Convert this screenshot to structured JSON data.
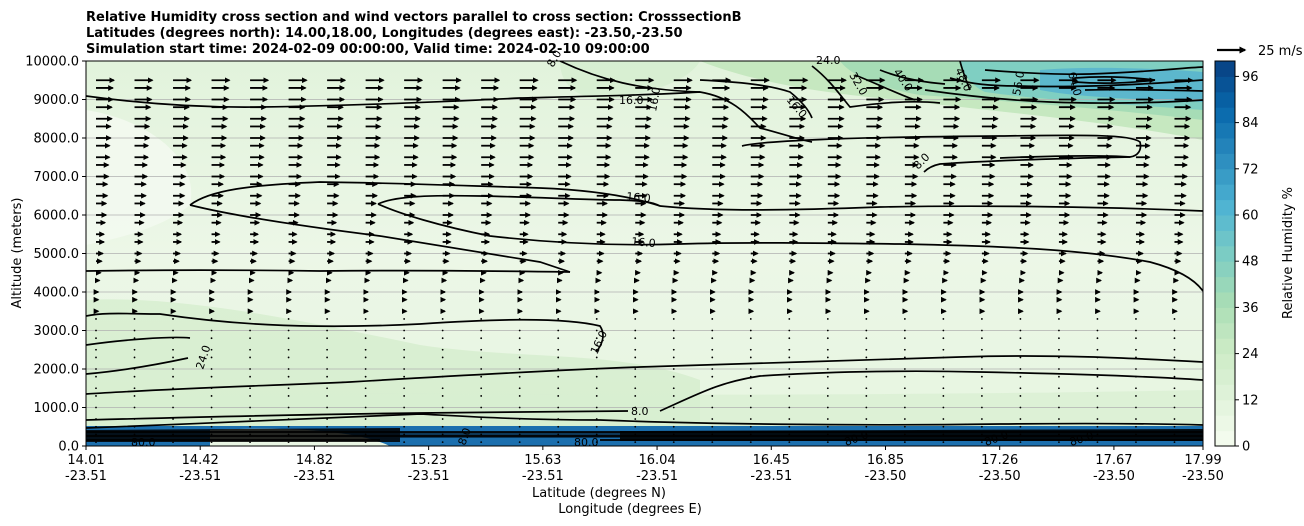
{
  "chart_data": {
    "type": "contour",
    "title": [
      "Relative Humidity cross section and wind vectors parallel to cross section: CrosssectionB",
      "Latitudes (degrees north): 14.00,18.00, Longitudes (degrees east): -23.50,-23.50",
      "Simulation start time: 2024-02-09 00:00:00, Valid time: 2024-02-10 09:00:00"
    ],
    "xlabel": "Latitude (degrees N)",
    "xlabel2": "Longitude (degrees E)",
    "ylabel": "Altitude (meters)",
    "ylim": [
      0,
      10000
    ],
    "yticks": [
      0,
      1000,
      2000,
      3000,
      4000,
      5000,
      6000,
      7000,
      8000,
      9000,
      10000
    ],
    "ytick_labels": [
      "0.0",
      "1000.0",
      "2000.0",
      "3000.0",
      "4000.0",
      "5000.0",
      "6000.0",
      "7000.0",
      "8000.0",
      "9000.0",
      "10000.0"
    ],
    "xticks": [
      {
        "lat": "14.01",
        "lon": "-23.51"
      },
      {
        "lat": "14.42",
        "lon": "-23.51"
      },
      {
        "lat": "14.82",
        "lon": "-23.51"
      },
      {
        "lat": "15.23",
        "lon": "-23.51"
      },
      {
        "lat": "15.63",
        "lon": "-23.51"
      },
      {
        "lat": "16.04",
        "lon": "-23.51"
      },
      {
        "lat": "16.45",
        "lon": "-23.51"
      },
      {
        "lat": "16.85",
        "lon": "-23.50"
      },
      {
        "lat": "17.26",
        "lon": "-23.50"
      },
      {
        "lat": "17.67",
        "lon": "-23.50"
      },
      {
        "lat": "17.99",
        "lon": "-23.50"
      }
    ],
    "grid": "horizontal",
    "colorbar": {
      "label": "Relative Humidity %",
      "ticks": [
        "0",
        "12",
        "24",
        "36",
        "48",
        "60",
        "72",
        "84",
        "96"
      ],
      "range": [
        0,
        100
      ],
      "step": 4,
      "colormap": "GnBu"
    },
    "quiver_key": "25 m/s",
    "contour_levels": [
      {
        "level": "8.0",
        "altitudes_m": [
          800,
          7400
        ]
      },
      {
        "level": "16.0",
        "altitudes_m": [
          1700,
          2900,
          4500,
          5000,
          6300,
          9000
        ]
      },
      {
        "level": "24.0",
        "altitudes_m": [
          2300,
          9900
        ]
      },
      {
        "level": "32.0",
        "altitudes_m": [
          9500
        ]
      },
      {
        "level": "40.0",
        "altitudes_m": [
          9600
        ]
      },
      {
        "level": "48.0",
        "altitudes_m": [
          9500
        ]
      },
      {
        "level": "56.0",
        "altitudes_m": [
          9600
        ]
      },
      {
        "level": "64.0",
        "altitudes_m": [
          9500
        ]
      },
      {
        "level": "80.0",
        "altitudes_m": [
          100
        ]
      }
    ],
    "contour_labels": [
      "8.0",
      "16.0",
      "16.0",
      "16.0",
      "16.0",
      "16.0",
      "8.0",
      "24.0",
      "16.0",
      "32.0",
      "40.0",
      "48.0",
      "56.0",
      "64.0",
      "24.0",
      "8.0",
      "8.0",
      "80.0",
      "80.0",
      "80.0",
      "80.0",
      "80.0"
    ],
    "wind_levels_m": [
      100,
      300,
      500,
      700,
      1000,
      1300,
      1500,
      1800,
      2000,
      2300,
      2500,
      2800,
      3000,
      3300,
      3500,
      3800,
      4000,
      4300,
      4500,
      4800,
      5000,
      5300,
      5500,
      5800,
      6000,
      6300,
      6500,
      6800,
      7000,
      7300,
      7500,
      7800,
      8000,
      8300,
      8500,
      8800,
      9000,
      9300,
      9500
    ],
    "wind_speed_profile_ms": [
      1,
      1,
      1,
      1,
      1,
      1,
      1,
      1,
      1,
      1,
      1,
      1,
      1,
      1,
      2,
      2,
      2,
      3,
      4,
      5,
      6,
      7,
      7,
      8,
      9,
      9,
      10,
      10,
      11,
      11,
      12,
      12,
      13,
      13,
      14,
      14,
      15,
      15,
      16
    ]
  }
}
